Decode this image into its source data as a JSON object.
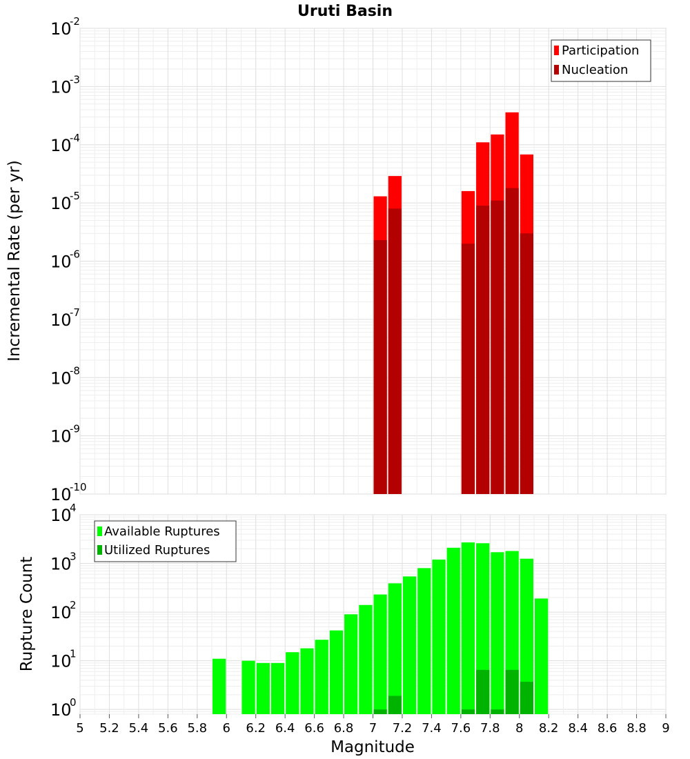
{
  "chart_data": [
    {
      "type": "bar",
      "title": "Uruti Basin",
      "xlabel": "",
      "ylabel": "Incremental Rate (per yr)",
      "yscale": "log",
      "ylim": [
        1e-10,
        0.01
      ],
      "xlim": [
        5,
        9
      ],
      "grid": true,
      "legend_position": "top-right",
      "ytick_exponents": [
        "-10",
        "-9",
        "-8",
        "-7",
        "-6",
        "-5",
        "-4",
        "-3",
        "-2"
      ],
      "ytick_base": "10",
      "x": [
        7.05,
        7.15,
        7.65,
        7.75,
        7.85,
        7.95,
        8.05
      ],
      "series": [
        {
          "name": "Participation",
          "color": "#ff0000",
          "values": [
            1.3e-05,
            2.9e-05,
            1.6e-05,
            0.00011,
            0.00015,
            0.00036,
            6.8e-05
          ]
        },
        {
          "name": "Nucleation",
          "color": "#b30000",
          "values": [
            2.3e-06,
            8e-06,
            2e-06,
            9e-06,
            1.1e-05,
            1.8e-05,
            3e-06
          ]
        }
      ]
    },
    {
      "type": "bar",
      "title": "",
      "xlabel": "Magnitude",
      "ylabel": "Rupture Count",
      "yscale": "log",
      "ylim": [
        0.8,
        10000
      ],
      "xlim": [
        5,
        9
      ],
      "grid": true,
      "legend_position": "top-left",
      "ytick_exponents": [
        "0",
        "1",
        "2",
        "3",
        "4"
      ],
      "ytick_base": "10",
      "xticks": [
        "5",
        "5.2",
        "5.4",
        "5.6",
        "5.8",
        "6",
        "6.2",
        "6.4",
        "6.6",
        "6.8",
        "7",
        "7.2",
        "7.4",
        "7.6",
        "7.8",
        "8",
        "8.2",
        "8.4",
        "8.6",
        "8.8",
        "9"
      ],
      "series": [
        {
          "name": "Available Ruptures",
          "color": "#00ff00",
          "x": [
            5.95,
            6.15,
            6.25,
            6.35,
            6.45,
            6.55,
            6.65,
            6.75,
            6.85,
            6.95,
            7.05,
            7.15,
            7.25,
            7.35,
            7.45,
            7.55,
            7.65,
            7.75,
            7.85,
            7.95,
            8.05,
            8.15
          ],
          "values": [
            11,
            10,
            9,
            9,
            15,
            18,
            27,
            42,
            90,
            140,
            230,
            390,
            540,
            800,
            1200,
            2100,
            2700,
            2600,
            1700,
            1800,
            1250,
            190
          ]
        },
        {
          "name": "Utilized Ruptures",
          "color": "#00b300",
          "x": [
            7.05,
            7.15,
            7.65,
            7.75,
            7.85,
            7.95,
            8.05
          ],
          "values": [
            1,
            1.9,
            1,
            6.5,
            1,
            6.5,
            3.7
          ]
        }
      ]
    }
  ]
}
